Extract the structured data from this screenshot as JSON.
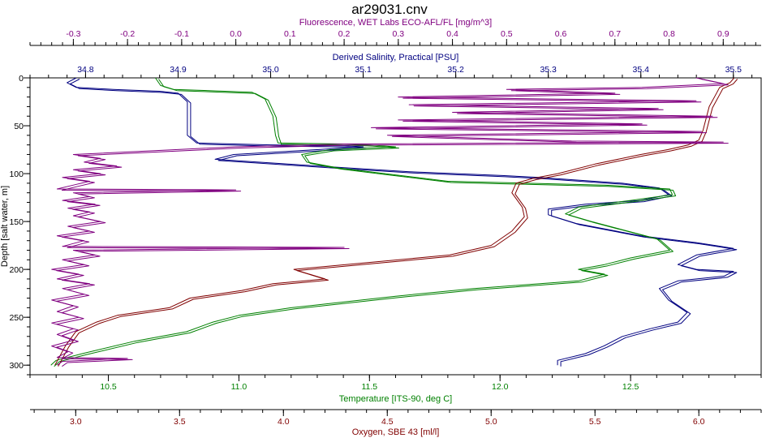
{
  "chart_data": {
    "type": "line",
    "title": "ar29031.cnv",
    "grid": false,
    "legend": "none",
    "depth_axis": {
      "label": "Depth [salt water, m]",
      "range": [
        0,
        310
      ],
      "ticks": [
        "0",
        "50",
        "100",
        "150",
        "200",
        "250",
        "300"
      ],
      "color": "#000000"
    },
    "x_axes": [
      {
        "key": "fluorescence",
        "label": "Fluorescence, WET Labs ECO-AFL/FL [mg/m^3]",
        "position": "top-outer",
        "range": [
          -0.38,
          0.97
        ],
        "ticks": [
          "-0.3",
          "-0.2",
          "-0.1",
          "0.0",
          "0.1",
          "0.2",
          "0.3",
          "0.4",
          "0.5",
          "0.6",
          "0.7",
          "0.8",
          "0.9"
        ],
        "color": "#800080"
      },
      {
        "key": "salinity",
        "label": "Derived Salinity, Practical [PSU]",
        "position": "top-inner",
        "range": [
          34.74,
          35.53
        ],
        "ticks": [
          "34.8",
          "34.9",
          "35.0",
          "35.1",
          "35.2",
          "35.3",
          "35.4",
          "35.5"
        ],
        "color": "#000080"
      },
      {
        "key": "temperature",
        "label": "Temperature [ITS-90, deg C]",
        "position": "bottom-inner",
        "range": [
          10.2,
          13.0
        ],
        "ticks": [
          "10.5",
          "11.0",
          "11.5",
          "12.0",
          "12.5"
        ],
        "color": "#008000"
      },
      {
        "key": "oxygen",
        "label": "Oxygen, SBE 43 [ml/l]",
        "position": "bottom-outer",
        "range": [
          2.78,
          6.3
        ],
        "ticks": [
          "3.0",
          "3.5",
          "4.0",
          "4.5",
          "5.0",
          "5.5",
          "6.0"
        ],
        "color": "#800000"
      }
    ],
    "series": [
      {
        "axis": "salinity",
        "color": "#000080",
        "points": [
          [
            34.79,
            0
          ],
          [
            34.78,
            5
          ],
          [
            34.79,
            10
          ],
          [
            34.83,
            12
          ],
          [
            34.88,
            14
          ],
          [
            34.9,
            16
          ],
          [
            34.91,
            25
          ],
          [
            34.91,
            40
          ],
          [
            34.91,
            60
          ],
          [
            34.92,
            68
          ],
          [
            35.0,
            70
          ],
          [
            35.08,
            71
          ],
          [
            35.1,
            72
          ],
          [
            35.05,
            75
          ],
          [
            34.96,
            80
          ],
          [
            34.94,
            85
          ],
          [
            35.05,
            92
          ],
          [
            35.15,
            98
          ],
          [
            35.25,
            102
          ],
          [
            35.29,
            104
          ],
          [
            35.38,
            110
          ],
          [
            35.42,
            115
          ],
          [
            35.43,
            122
          ],
          [
            35.4,
            128
          ],
          [
            35.34,
            132
          ],
          [
            35.3,
            137
          ],
          [
            35.3,
            143
          ],
          [
            35.33,
            152
          ],
          [
            35.4,
            165
          ],
          [
            35.46,
            172
          ],
          [
            35.5,
            178
          ],
          [
            35.46,
            185
          ],
          [
            35.44,
            195
          ],
          [
            35.46,
            200
          ],
          [
            35.5,
            202
          ],
          [
            35.49,
            207
          ],
          [
            35.44,
            212
          ],
          [
            35.42,
            220
          ],
          [
            35.43,
            232
          ],
          [
            35.45,
            245
          ],
          [
            35.44,
            255
          ],
          [
            35.41,
            262
          ],
          [
            35.38,
            270
          ],
          [
            35.36,
            280
          ],
          [
            35.34,
            288
          ],
          [
            35.31,
            295
          ],
          [
            35.31,
            300
          ]
        ]
      },
      {
        "axis": "temperature",
        "color": "#008000",
        "points": [
          [
            10.68,
            0
          ],
          [
            10.7,
            8
          ],
          [
            10.75,
            12
          ],
          [
            11.05,
            15
          ],
          [
            11.1,
            22
          ],
          [
            11.13,
            40
          ],
          [
            11.14,
            60
          ],
          [
            11.15,
            68
          ],
          [
            11.4,
            69
          ],
          [
            11.5,
            70
          ],
          [
            11.6,
            72
          ],
          [
            11.35,
            75
          ],
          [
            11.24,
            80
          ],
          [
            11.26,
            88
          ],
          [
            11.38,
            94
          ],
          [
            11.56,
            100
          ],
          [
            11.8,
            108
          ],
          [
            12.4,
            112
          ],
          [
            12.65,
            116
          ],
          [
            12.66,
            122
          ],
          [
            12.5,
            128
          ],
          [
            12.3,
            135
          ],
          [
            12.25,
            142
          ],
          [
            12.35,
            150
          ],
          [
            12.6,
            168
          ],
          [
            12.65,
            180
          ],
          [
            12.5,
            188
          ],
          [
            12.4,
            195
          ],
          [
            12.3,
            200
          ],
          [
            12.4,
            205
          ],
          [
            12.3,
            212
          ],
          [
            11.9,
            220
          ],
          [
            11.6,
            228
          ],
          [
            11.2,
            240
          ],
          [
            11.0,
            248
          ],
          [
            10.9,
            255
          ],
          [
            10.8,
            265
          ],
          [
            10.6,
            275
          ],
          [
            10.4,
            288
          ],
          [
            10.3,
            295
          ],
          [
            10.28,
            300
          ]
        ]
      },
      {
        "axis": "oxygen",
        "color": "#800000",
        "points": [
          [
            6.17,
            0
          ],
          [
            6.15,
            5
          ],
          [
            6.1,
            10
          ],
          [
            6.08,
            18
          ],
          [
            6.05,
            30
          ],
          [
            6.02,
            55
          ],
          [
            6.0,
            65
          ],
          [
            5.95,
            70
          ],
          [
            5.85,
            75
          ],
          [
            5.72,
            80
          ],
          [
            5.5,
            90
          ],
          [
            5.32,
            100
          ],
          [
            5.2,
            105
          ],
          [
            5.12,
            110
          ],
          [
            5.1,
            120
          ],
          [
            5.15,
            135
          ],
          [
            5.16,
            145
          ],
          [
            5.1,
            160
          ],
          [
            5.0,
            175
          ],
          [
            4.8,
            185
          ],
          [
            4.4,
            193
          ],
          [
            4.05,
            200
          ],
          [
            4.2,
            210
          ],
          [
            3.95,
            215
          ],
          [
            3.8,
            222
          ],
          [
            3.55,
            230
          ],
          [
            3.45,
            240
          ],
          [
            3.2,
            248
          ],
          [
            3.1,
            255
          ],
          [
            3.0,
            265
          ],
          [
            2.95,
            280
          ],
          [
            2.92,
            292
          ],
          [
            2.9,
            300
          ]
        ]
      },
      {
        "axis": "fluorescence",
        "color": "#800080",
        "points": [
          [
            0.85,
            0
          ],
          [
            0.9,
            6
          ],
          [
            0.75,
            10
          ],
          [
            0.5,
            12
          ],
          [
            0.7,
            16
          ],
          [
            0.3,
            20
          ],
          [
            0.85,
            24
          ],
          [
            0.32,
            28
          ],
          [
            0.78,
            32
          ],
          [
            0.4,
            36
          ],
          [
            0.88,
            40
          ],
          [
            0.3,
            44
          ],
          [
            0.75,
            48
          ],
          [
            0.25,
            52
          ],
          [
            0.86,
            56
          ],
          [
            0.28,
            60
          ],
          [
            0.62,
            66
          ],
          [
            0.9,
            67
          ],
          [
            0.2,
            69
          ],
          [
            0.0,
            72
          ],
          [
            -0.15,
            76
          ],
          [
            -0.3,
            80
          ],
          [
            -0.25,
            84
          ],
          [
            -0.28,
            88
          ],
          [
            -0.22,
            92
          ],
          [
            -0.3,
            96
          ],
          [
            -0.25,
            100
          ],
          [
            -0.32,
            104
          ],
          [
            -0.27,
            108
          ],
          [
            -0.3,
            112
          ],
          [
            -0.33,
            116
          ],
          [
            0.0,
            117
          ],
          [
            -0.3,
            120
          ],
          [
            -0.27,
            124
          ],
          [
            -0.32,
            128
          ],
          [
            -0.26,
            132
          ],
          [
            -0.31,
            136
          ],
          [
            -0.27,
            140
          ],
          [
            -0.3,
            144
          ],
          [
            -0.25,
            150
          ],
          [
            -0.31,
            155
          ],
          [
            -0.27,
            160
          ],
          [
            -0.33,
            165
          ],
          [
            -0.28,
            170
          ],
          [
            -0.32,
            176
          ],
          [
            0.2,
            177
          ],
          [
            -0.3,
            180
          ],
          [
            -0.26,
            185
          ],
          [
            -0.32,
            190
          ],
          [
            -0.28,
            195
          ],
          [
            -0.34,
            200
          ],
          [
            -0.29,
            205
          ],
          [
            -0.33,
            210
          ],
          [
            -0.27,
            215
          ],
          [
            -0.32,
            220
          ],
          [
            -0.28,
            226
          ],
          [
            -0.34,
            232
          ],
          [
            -0.3,
            238
          ],
          [
            -0.33,
            244
          ],
          [
            -0.29,
            250
          ],
          [
            -0.34,
            256
          ],
          [
            -0.3,
            262
          ],
          [
            -0.33,
            268
          ],
          [
            -0.3,
            274
          ],
          [
            -0.34,
            280
          ],
          [
            -0.31,
            286
          ],
          [
            -0.33,
            292
          ],
          [
            -0.2,
            293
          ],
          [
            -0.32,
            296
          ],
          [
            -0.33,
            300
          ]
        ]
      }
    ]
  }
}
